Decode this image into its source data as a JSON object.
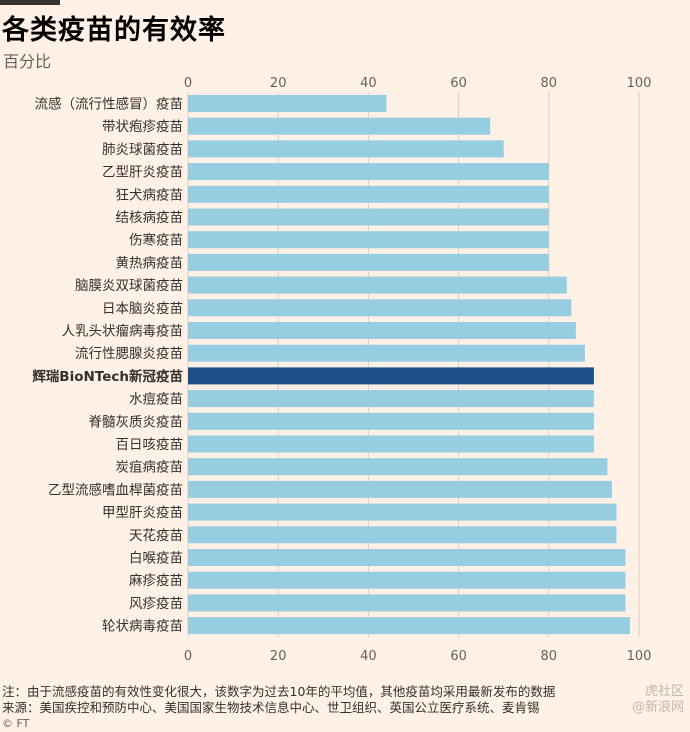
{
  "header": {
    "title": "各类疫苗的有效率",
    "subtitle": "百分比"
  },
  "footer": {
    "note": "注：由于流感疫苗的有效性变化很大，该数字为过去10年的平均值，其他疫苗均采用最新发布的数据",
    "source": "来源：美国疾控和预防中心、美国国家生物技术信息中心、世卫组织、英国公立医疗系统、麦肯锡",
    "credit": "© FT"
  },
  "watermark": {
    "line1": "虎社区",
    "line2": "@新浪网"
  },
  "colors": {
    "background": "#fff1e5",
    "bar": "#96cde0",
    "highlight": "#1d4f86",
    "grid": "#d8cfc6"
  },
  "chart_data": {
    "type": "bar",
    "orientation": "horizontal",
    "xlim": [
      0,
      100
    ],
    "x_ticks": [
      0,
      20,
      40,
      60,
      80,
      100
    ],
    "grid": true,
    "highlight_category": "辉瑞BioNTech新冠疫苗",
    "categories": [
      "流感（流行性感冒）疫苗",
      "带状疱疹疫苗",
      "肺炎球菌疫苗",
      "乙型肝炎疫苗",
      "狂犬病疫苗",
      "结核病疫苗",
      "伤寒疫苗",
      "黄热病疫苗",
      "脑膜炎双球菌疫苗",
      "日本脑炎疫苗",
      "人乳头状瘤病毒疫苗",
      "流行性腮腺炎疫苗",
      "辉瑞BioNTech新冠疫苗",
      "水痘疫苗",
      "脊髓灰质炎疫苗",
      "百日咳疫苗",
      "炭疽病疫苗",
      "乙型流感嗜血桿菌疫苗",
      "甲型肝炎疫苗",
      "天花疫苗",
      "白喉疫苗",
      "麻疹疫苗",
      "风疹疫苗",
      "轮状病毒疫苗"
    ],
    "values": [
      44,
      67,
      70,
      80,
      80,
      80,
      80,
      80,
      84,
      85,
      86,
      88,
      90,
      90,
      90,
      90,
      93,
      94,
      95,
      95,
      97,
      97,
      97,
      98
    ]
  }
}
